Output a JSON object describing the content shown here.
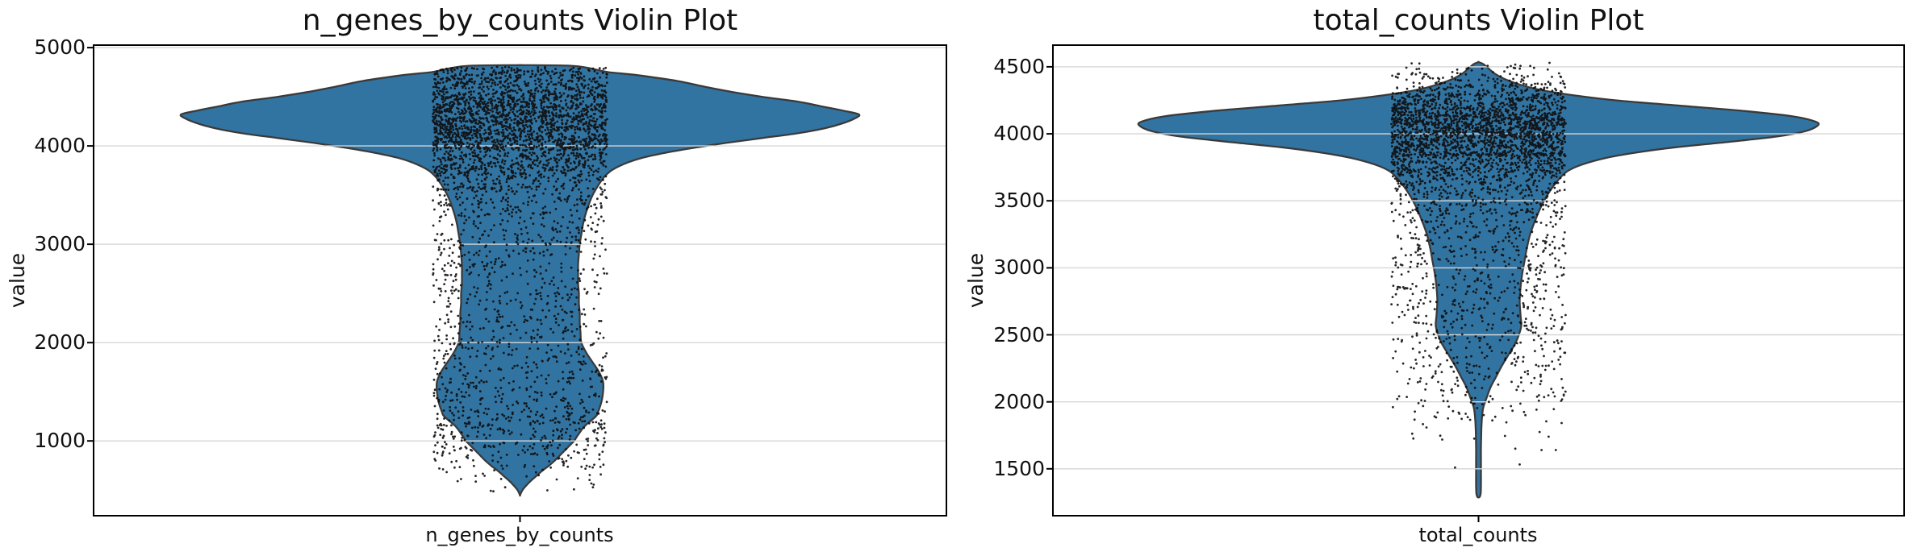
{
  "figure": {
    "background": "#ffffff"
  },
  "chart_data": [
    {
      "type": "violin",
      "title": "n_genes_by_counts Violin Plot",
      "xlabel": "n_genes_by_counts",
      "ylabel": "value",
      "ylim": [
        240,
        5025
      ],
      "yticks": [
        1000,
        2000,
        3000,
        4000,
        5000
      ],
      "grid": true,
      "colors": {
        "fill": "#3274a1",
        "edge": "#3a3a3a",
        "grid": "#d6d6d6",
        "spine": "#000000",
        "points": "#0d0d0d"
      },
      "violin_profile": [
        [
          4822,
          0
        ],
        [
          4817,
          58
        ],
        [
          4800,
          80
        ],
        [
          4780,
          92
        ],
        [
          4750,
          110
        ],
        [
          4720,
          145
        ],
        [
          4660,
          195
        ],
        [
          4600,
          230
        ],
        [
          4550,
          262
        ],
        [
          4500,
          300
        ],
        [
          4450,
          345
        ],
        [
          4400,
          375
        ],
        [
          4360,
          400
        ],
        [
          4320,
          420
        ],
        [
          4280,
          415
        ],
        [
          4230,
          400
        ],
        [
          4180,
          378
        ],
        [
          4130,
          345
        ],
        [
          4080,
          300
        ],
        [
          4030,
          255
        ],
        [
          3980,
          215
        ],
        [
          3930,
          180
        ],
        [
          3880,
          152
        ],
        [
          3830,
          133
        ],
        [
          3760,
          115
        ],
        [
          3690,
          105
        ],
        [
          3600,
          97
        ],
        [
          3500,
          90
        ],
        [
          3400,
          85
        ],
        [
          3300,
          81
        ],
        [
          3200,
          78
        ],
        [
          3100,
          76
        ],
        [
          3000,
          74
        ],
        [
          2900,
          73
        ],
        [
          2800,
          72
        ],
        [
          2700,
          72
        ],
        [
          2600,
          72
        ],
        [
          2500,
          73
        ],
        [
          2400,
          73
        ],
        [
          2300,
          74
        ],
        [
          2200,
          74
        ],
        [
          2100,
          75
        ],
        [
          2000,
          76
        ],
        [
          1900,
          82
        ],
        [
          1800,
          90
        ],
        [
          1700,
          98
        ],
        [
          1600,
          103
        ],
        [
          1500,
          103
        ],
        [
          1400,
          101
        ],
        [
          1300,
          97
        ],
        [
          1250,
          94
        ],
        [
          1150,
          80
        ],
        [
          1050,
          71
        ],
        [
          1000,
          67
        ],
        [
          950,
          61
        ],
        [
          900,
          55
        ],
        [
          850,
          49
        ],
        [
          800,
          43
        ],
        [
          750,
          36
        ],
        [
          700,
          28
        ],
        [
          650,
          21
        ],
        [
          600,
          14
        ],
        [
          550,
          8
        ],
        [
          500,
          3
        ],
        [
          450,
          0
        ]
      ],
      "jitter": {
        "halfwidth": 108,
        "seed": 1337,
        "segments": [
          {
            "from": 4700,
            "to": 4805,
            "count": 150
          },
          {
            "from": 4550,
            "to": 4700,
            "count": 260
          },
          {
            "from": 4350,
            "to": 4550,
            "count": 520
          },
          {
            "from": 4150,
            "to": 4350,
            "count": 560
          },
          {
            "from": 3950,
            "to": 4150,
            "count": 520
          },
          {
            "from": 3750,
            "to": 3950,
            "count": 330
          },
          {
            "from": 3550,
            "to": 3750,
            "count": 220
          },
          {
            "from": 3300,
            "to": 3550,
            "count": 150
          },
          {
            "from": 3000,
            "to": 3300,
            "count": 130
          },
          {
            "from": 2700,
            "to": 3000,
            "count": 120
          },
          {
            "from": 2400,
            "to": 2700,
            "count": 110
          },
          {
            "from": 2100,
            "to": 2400,
            "count": 110
          },
          {
            "from": 1800,
            "to": 2100,
            "count": 115
          },
          {
            "from": 1500,
            "to": 1800,
            "count": 120
          },
          {
            "from": 1250,
            "to": 1500,
            "count": 130
          },
          {
            "from": 1050,
            "to": 1250,
            "count": 130
          },
          {
            "from": 850,
            "to": 1050,
            "count": 110
          },
          {
            "from": 700,
            "to": 850,
            "count": 45
          },
          {
            "from": 550,
            "to": 700,
            "count": 18
          },
          {
            "from": 480,
            "to": 550,
            "count": 6
          }
        ]
      }
    },
    {
      "type": "violin",
      "title": "total_counts Violin Plot",
      "xlabel": "total_counts",
      "ylabel": "value",
      "ylim": [
        1150,
        4662
      ],
      "yticks": [
        1500,
        2000,
        2500,
        3000,
        3500,
        4000,
        4500
      ],
      "grid": true,
      "colors": {
        "fill": "#3274a1",
        "edge": "#3a3a3a",
        "grid": "#d6d6d6",
        "spine": "#000000",
        "points": "#0d0d0d"
      },
      "violin_profile": [
        [
          4535,
          0
        ],
        [
          4520,
          6
        ],
        [
          4490,
          12
        ],
        [
          4450,
          20
        ],
        [
          4410,
          32
        ],
        [
          4370,
          50
        ],
        [
          4330,
          75
        ],
        [
          4290,
          115
        ],
        [
          4250,
          170
        ],
        [
          4210,
          250
        ],
        [
          4170,
          330
        ],
        [
          4130,
          390
        ],
        [
          4090,
          418
        ],
        [
          4060,
          420
        ],
        [
          4020,
          405
        ],
        [
          3980,
          370
        ],
        [
          3940,
          310
        ],
        [
          3900,
          245
        ],
        [
          3860,
          195
        ],
        [
          3820,
          158
        ],
        [
          3770,
          128
        ],
        [
          3720,
          110
        ],
        [
          3650,
          98
        ],
        [
          3550,
          86
        ],
        [
          3450,
          77
        ],
        [
          3350,
          70
        ],
        [
          3250,
          64
        ],
        [
          3150,
          60
        ],
        [
          3050,
          57
        ],
        [
          2950,
          54
        ],
        [
          2850,
          52
        ],
        [
          2750,
          51
        ],
        [
          2650,
          52
        ],
        [
          2570,
          53
        ],
        [
          2500,
          50
        ],
        [
          2430,
          45
        ],
        [
          2350,
          37
        ],
        [
          2270,
          29
        ],
        [
          2190,
          22
        ],
        [
          2110,
          15
        ],
        [
          2030,
          10
        ],
        [
          1960,
          6
        ],
        [
          1900,
          4.5
        ],
        [
          1800,
          3.5
        ],
        [
          1650,
          3
        ],
        [
          1500,
          3
        ],
        [
          1310,
          2.5
        ]
      ],
      "jitter": {
        "halfwidth": 108,
        "seed": 2024,
        "segments": [
          {
            "from": 4460,
            "to": 4530,
            "count": 25
          },
          {
            "from": 4380,
            "to": 4460,
            "count": 60
          },
          {
            "from": 4300,
            "to": 4380,
            "count": 120
          },
          {
            "from": 4200,
            "to": 4300,
            "count": 260
          },
          {
            "from": 4080,
            "to": 4200,
            "count": 520
          },
          {
            "from": 3960,
            "to": 4080,
            "count": 560
          },
          {
            "from": 3830,
            "to": 3960,
            "count": 520
          },
          {
            "from": 3700,
            "to": 3830,
            "count": 300
          },
          {
            "from": 3550,
            "to": 3700,
            "count": 210
          },
          {
            "from": 3400,
            "to": 3550,
            "count": 150
          },
          {
            "from": 3200,
            "to": 3400,
            "count": 130
          },
          {
            "from": 3000,
            "to": 3200,
            "count": 120
          },
          {
            "from": 2800,
            "to": 3000,
            "count": 110
          },
          {
            "from": 2600,
            "to": 2800,
            "count": 105
          },
          {
            "from": 2400,
            "to": 2600,
            "count": 100
          },
          {
            "from": 2200,
            "to": 2400,
            "count": 90
          },
          {
            "from": 2000,
            "to": 2200,
            "count": 70
          },
          {
            "from": 1850,
            "to": 2000,
            "count": 35
          },
          {
            "from": 1700,
            "to": 1850,
            "count": 12
          },
          {
            "from": 1500,
            "to": 1700,
            "count": 5
          }
        ]
      }
    }
  ]
}
